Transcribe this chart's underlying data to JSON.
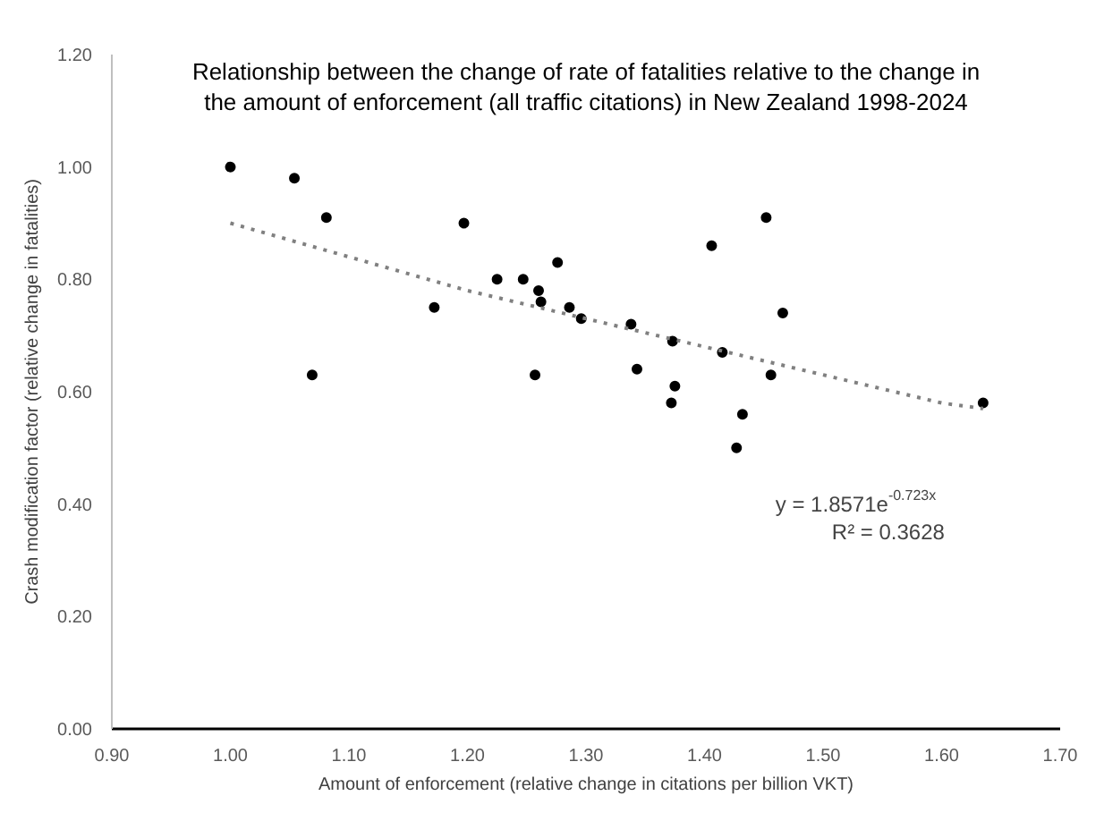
{
  "chart_data": {
    "type": "scatter",
    "title": "Relationship between the change of rate of fatalities relative to the change in\nthe amount of enforcement (all traffic citations) in New Zealand 1998-2024",
    "xlabel": "Amount of enforcement (relative change in citations per billion VKT)",
    "ylabel": "Crash modification factor (relative change in fatalities)",
    "xlim": [
      0.9,
      1.7
    ],
    "xticks": [
      {
        "value": 0.9,
        "label": "0.90"
      },
      {
        "value": 1.0,
        "label": "1.00"
      },
      {
        "value": 1.1,
        "label": "1.10"
      },
      {
        "value": 1.2,
        "label": "1.20"
      },
      {
        "value": 1.3,
        "label": "1.30"
      },
      {
        "value": 1.4,
        "label": "1.40"
      },
      {
        "value": 1.5,
        "label": "1.50"
      },
      {
        "value": 1.6,
        "label": "1.60"
      },
      {
        "value": 1.7,
        "label": "1.70"
      }
    ],
    "ylim": [
      0,
      1.2
    ],
    "yticks": [
      {
        "value": 0,
        "label": "0.00"
      },
      {
        "value": 0.2,
        "label": "0.20"
      },
      {
        "value": 0.4,
        "label": "0.40"
      },
      {
        "value": 0.6,
        "label": "0.60"
      },
      {
        "value": 0.8,
        "label": "0.80"
      },
      {
        "value": 1.0,
        "label": "1.00"
      },
      {
        "value": 1.2,
        "label": "1.20"
      }
    ],
    "grid": false,
    "series": [
      {
        "color": "#000000",
        "marker": "circle",
        "x": [
          1.0,
          1.054,
          1.081,
          1.069,
          1.172,
          1.225,
          1.247,
          1.276,
          1.26,
          1.262,
          1.286,
          1.296,
          1.257,
          1.338,
          1.343,
          1.373,
          1.375,
          1.372,
          1.406,
          1.415,
          1.432,
          1.427,
          1.456,
          1.466,
          1.635,
          1.197,
          1.452
        ],
        "values": [
          1.0,
          0.98,
          0.91,
          0.63,
          0.75,
          0.8,
          0.8,
          0.83,
          0.78,
          0.76,
          0.75,
          0.73,
          0.63,
          0.72,
          0.64,
          0.69,
          0.61,
          0.58,
          0.86,
          0.67,
          0.56,
          0.5,
          0.63,
          0.74,
          0.58,
          0.9,
          0.91
        ]
      },
      {
        "type": "line",
        "color": "#808080",
        "line_style": "dotted",
        "marker": "none",
        "x": [
          1.0,
          1.1,
          1.2,
          1.3,
          1.4,
          1.5,
          1.6,
          1.635
        ],
        "values": [
          0.9,
          0.84,
          0.78,
          0.73,
          0.68,
          0.63,
          0.58,
          0.57
        ]
      }
    ],
    "annotations": [
      "y = 1.8571e$^{-0.723x}$",
      "R² = 0.3628"
    ]
  }
}
